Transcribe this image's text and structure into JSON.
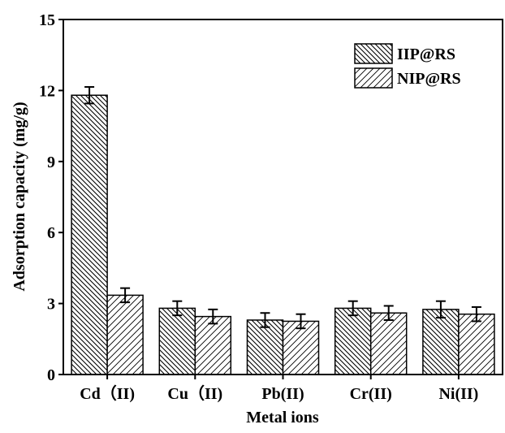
{
  "chart_data": {
    "type": "bar",
    "title": "",
    "xlabel": "Metal ions",
    "ylabel": "Adsorption capacity (mg/g)",
    "categories": [
      "Cd（II)",
      "Cu（II)",
      "Pb(II)",
      "Cr(II)",
      "Ni(II)"
    ],
    "ylim": [
      0,
      15
    ],
    "yticks": [
      "0",
      "3",
      "6",
      "9",
      "12",
      "15"
    ],
    "legend_position": "top-right",
    "grid": false,
    "series": [
      {
        "name": "IIP@RS",
        "pattern": "backslash-hatch",
        "values": [
          11.8,
          2.8,
          2.3,
          2.8,
          2.75
        ],
        "errors": [
          0.35,
          0.3,
          0.3,
          0.3,
          0.35
        ]
      },
      {
        "name": "NIP@RS",
        "pattern": "slash-hatch",
        "values": [
          3.35,
          2.45,
          2.25,
          2.6,
          2.55
        ],
        "errors": [
          0.3,
          0.3,
          0.3,
          0.3,
          0.3
        ]
      }
    ]
  }
}
